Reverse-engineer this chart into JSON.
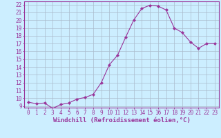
{
  "x": [
    0,
    1,
    2,
    3,
    4,
    5,
    6,
    7,
    8,
    9,
    10,
    11,
    12,
    13,
    14,
    15,
    16,
    17,
    18,
    19,
    20,
    21,
    22,
    23
  ],
  "y": [
    9.5,
    9.3,
    9.4,
    8.7,
    9.2,
    9.4,
    9.9,
    10.1,
    10.5,
    12.0,
    14.3,
    15.5,
    17.8,
    20.0,
    21.5,
    21.9,
    21.8,
    21.3,
    19.0,
    18.4,
    17.2,
    16.4,
    17.0,
    17.0
  ],
  "line_color": "#993399",
  "marker": "D",
  "marker_size": 2.2,
  "bg_color": "#cceeff",
  "grid_color": "#aabbcc",
  "xlabel": "Windchill (Refroidissement éolien,°C)",
  "ylabel_ticks": [
    9,
    10,
    11,
    12,
    13,
    14,
    15,
    16,
    17,
    18,
    19,
    20,
    21,
    22
  ],
  "ylim": [
    8.8,
    22.4
  ],
  "xlim": [
    -0.5,
    23.5
  ],
  "label_color": "#993399",
  "tick_color": "#993399",
  "xlabel_fontsize": 6.5,
  "tick_fontsize": 5.5
}
